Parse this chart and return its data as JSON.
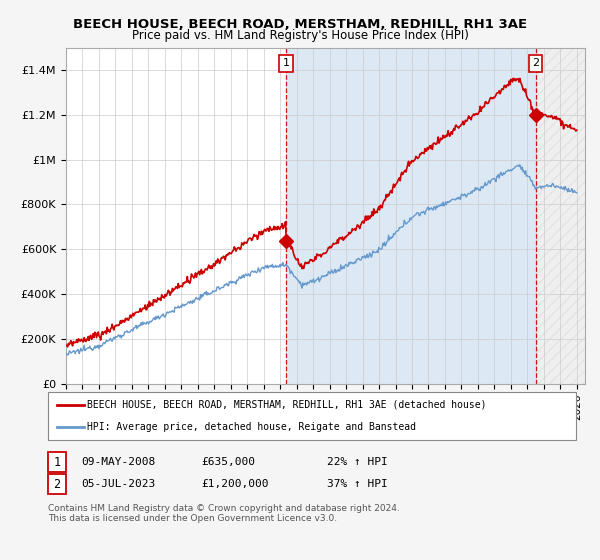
{
  "title": "BEECH HOUSE, BEECH ROAD, MERSTHAM, REDHILL, RH1 3AE",
  "subtitle": "Price paid vs. HM Land Registry's House Price Index (HPI)",
  "legend_line1": "BEECH HOUSE, BEECH ROAD, MERSTHAM, REDHILL, RH1 3AE (detached house)",
  "legend_line2": "HPI: Average price, detached house, Reigate and Banstead",
  "sale1_date": "09-MAY-2008",
  "sale1_price": "£635,000",
  "sale1_hpi": "22% ↑ HPI",
  "sale2_date": "05-JUL-2023",
  "sale2_price": "£1,200,000",
  "sale2_hpi": "37% ↑ HPI",
  "footer": "Contains HM Land Registry data © Crown copyright and database right 2024.\nThis data is licensed under the Open Government Licence v3.0.",
  "hpi_color": "#6699cc",
  "price_color": "#cc0000",
  "dashed_color": "#cc0000",
  "ylim": [
    0,
    1500000
  ],
  "yticks": [
    0,
    200000,
    400000,
    600000,
    800000,
    1000000,
    1200000,
    1400000
  ],
  "ytick_labels": [
    "£0",
    "£200K",
    "£400K",
    "£600K",
    "£800K",
    "£1M",
    "£1.2M",
    "£1.4M"
  ],
  "xlim_start": 1995.0,
  "xlim_end": 2026.5,
  "sale1_x": 2008.36,
  "sale1_y": 635000,
  "sale2_x": 2023.5,
  "sale2_y": 1200000,
  "bg_color": "#ffffff",
  "shade_color": "#dce9f5",
  "hatch_color": "#dddddd"
}
